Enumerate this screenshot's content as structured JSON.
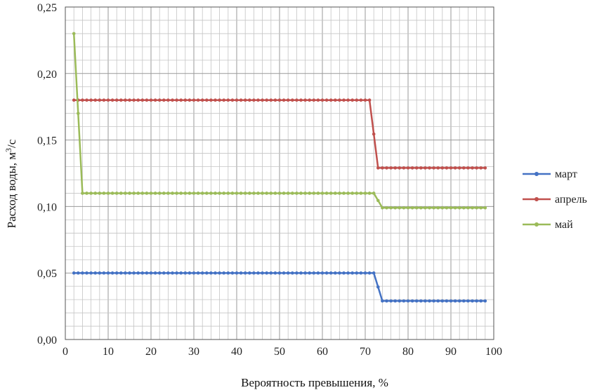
{
  "chart_data": {
    "type": "line",
    "xlabel": "Вероятность превышения, %",
    "ylabel_main": "Расход воды, м",
    "ylabel_sup": "3",
    "ylabel_tail": "/с",
    "xlim": [
      0,
      100
    ],
    "ylim": [
      0,
      0.25
    ],
    "x_ticks": [
      "0",
      "10",
      "20",
      "30",
      "40",
      "50",
      "60",
      "70",
      "80",
      "90",
      "100"
    ],
    "y_ticks": [
      "0,00",
      "0,05",
      "0,10",
      "0,15",
      "0,20",
      "0,25"
    ],
    "grid": true,
    "legend_position": "right",
    "series": [
      {
        "name": "март",
        "color": "#4472C4",
        "points": [
          [
            2,
            0.05
          ],
          [
            72,
            0.05
          ],
          [
            74,
            0.029
          ],
          [
            98,
            0.029
          ]
        ]
      },
      {
        "name": "апрель",
        "color": "#C0504D",
        "points": [
          [
            2,
            0.18
          ],
          [
            71,
            0.18
          ],
          [
            73,
            0.129
          ],
          [
            98,
            0.129
          ]
        ]
      },
      {
        "name": "май",
        "color": "#9BBB59",
        "points": [
          [
            2,
            0.23
          ],
          [
            4,
            0.11
          ],
          [
            72,
            0.11
          ],
          [
            74,
            0.099
          ],
          [
            98,
            0.099
          ]
        ]
      }
    ]
  }
}
